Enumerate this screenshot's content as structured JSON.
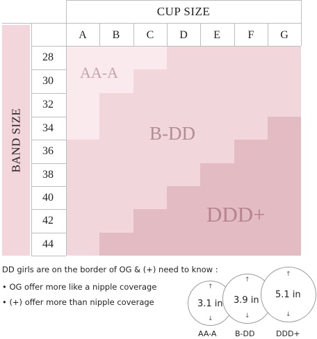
{
  "chart": {
    "title": "CUP SIZE",
    "band_title": "BAND SIZE",
    "cups": [
      "A",
      "B",
      "C",
      "D",
      "E",
      "F",
      "G"
    ],
    "bands": [
      "28",
      "30",
      "32",
      "34",
      "36",
      "38",
      "40",
      "42",
      "44"
    ],
    "zones": [
      {
        "name": "AA-A",
        "color": "#faeaed",
        "text_color": "#c3a4aa"
      },
      {
        "name": "B-DD",
        "color": "#f1d6db",
        "text_color": "#b38d95"
      },
      {
        "name": "DDD+",
        "color": "#e3bbc3",
        "text_color": "#b7838d"
      }
    ]
  },
  "notes": {
    "heading": "DD girls are on the border of OG & (+) need to know :",
    "items": [
      "• OG offer more like a nipple coverage",
      "• (+) offer more than nipple coverage"
    ]
  },
  "coverage": [
    {
      "measure": "3.1 in",
      "label": "AA-A"
    },
    {
      "measure": "3.9 in",
      "label": "B-DD"
    },
    {
      "measure": "5.1 in",
      "label": "DDD+"
    }
  ],
  "arrows": {
    "up": "↑",
    "down": "↓"
  }
}
